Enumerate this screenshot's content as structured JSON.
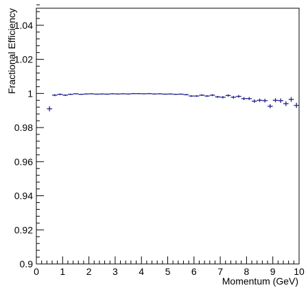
{
  "chart_data": {
    "type": "scatter",
    "xlabel": "Momentum (GeV)",
    "ylabel": "Fractional Efficiency",
    "xlim": [
      0,
      10
    ],
    "ylim": [
      0.9,
      1.05
    ],
    "x_ticks": [
      "0",
      "1",
      "2",
      "3",
      "4",
      "5",
      "6",
      "7",
      "8",
      "9",
      "10"
    ],
    "y_ticks": [
      "0.9",
      "0.92",
      "0.94",
      "0.96",
      "0.98",
      "1",
      "1.02",
      "1.04"
    ],
    "bin_width": 0.2,
    "marker_color": "#1f1f8c",
    "series": [
      {
        "x": [
          0.5,
          0.7,
          0.9,
          1.1,
          1.3,
          1.5,
          1.7,
          1.9,
          2.1,
          2.3,
          2.5,
          2.7,
          2.9,
          3.1,
          3.3,
          3.5,
          3.7,
          3.9,
          4.1,
          4.3,
          4.5,
          4.7,
          4.9,
          5.1,
          5.3,
          5.5,
          5.7,
          5.9,
          6.1,
          6.3,
          6.5,
          6.7,
          6.9,
          7.1,
          7.3,
          7.5,
          7.7,
          7.9,
          8.1,
          8.3,
          8.5,
          8.7,
          8.9,
          9.1,
          9.3,
          9.5,
          9.7,
          9.9
        ],
        "y": [
          0.991,
          0.999,
          0.9995,
          0.999,
          0.9995,
          0.9998,
          0.9995,
          0.9997,
          0.9998,
          0.9996,
          0.9997,
          0.9996,
          0.9998,
          0.9997,
          0.9998,
          0.9997,
          0.9999,
          0.9999,
          0.9998,
          0.9999,
          0.9997,
          0.9998,
          0.9996,
          0.9997,
          0.9995,
          0.9996,
          0.9993,
          0.9985,
          0.9985,
          0.999,
          0.9985,
          0.999,
          0.998,
          0.9978,
          0.9988,
          0.9978,
          0.9983,
          0.997,
          0.997,
          0.9955,
          0.996,
          0.9958,
          0.9925,
          0.996,
          0.9958,
          0.994,
          0.9965,
          0.993
        ],
        "yerr": [
          0.0015,
          0.0006,
          0.0005,
          0.0005,
          0.0004,
          0.0003,
          0.0003,
          0.0003,
          0.0003,
          0.0003,
          0.0003,
          0.0003,
          0.0003,
          0.0003,
          0.0003,
          0.0003,
          0.0003,
          0.0003,
          0.0003,
          0.0003,
          0.0003,
          0.0003,
          0.0003,
          0.0003,
          0.0003,
          0.0003,
          0.0004,
          0.0005,
          0.0005,
          0.0005,
          0.0005,
          0.0006,
          0.0006,
          0.0007,
          0.0007,
          0.0008,
          0.0008,
          0.0009,
          0.0009,
          0.001,
          0.001,
          0.0011,
          0.0012,
          0.0012,
          0.0013,
          0.0014,
          0.0014,
          0.0015
        ]
      }
    ]
  }
}
